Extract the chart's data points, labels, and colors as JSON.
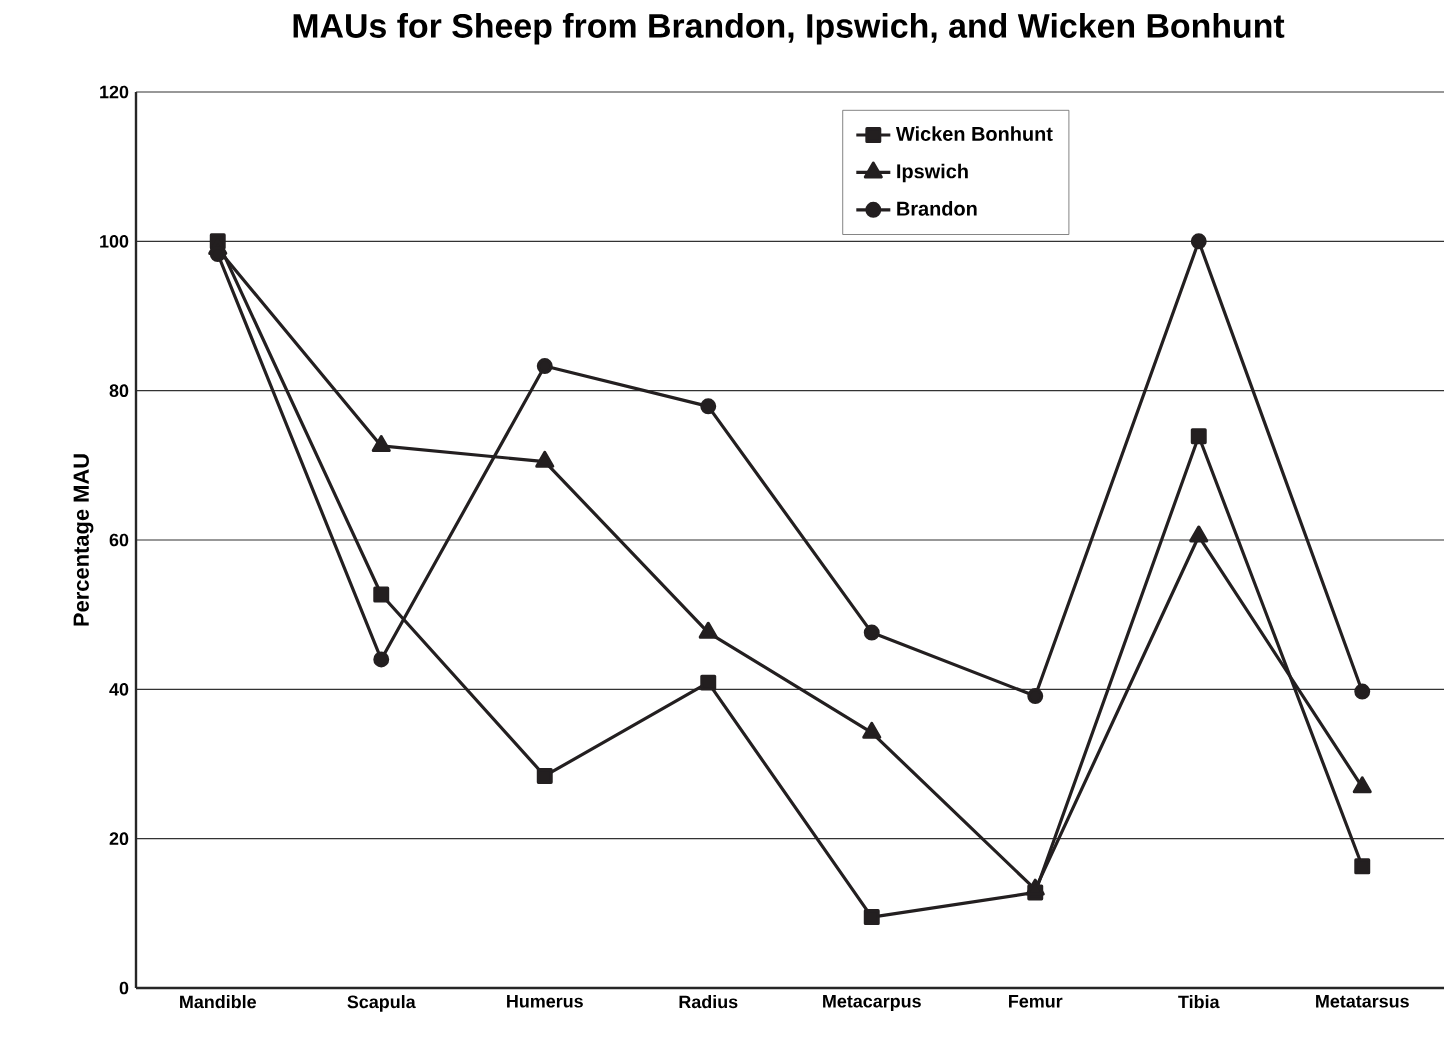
{
  "chart_data": {
    "type": "line",
    "title": "MAUs for Sheep from Brandon, Ipswich, and Wicken Bonhunt",
    "ylabel": "Percentage MAU",
    "categories": [
      "Mandible",
      "Scapula",
      "Humerus",
      "Radius",
      "Metacarpus",
      "Femur",
      "Tibia",
      "Metatarsus"
    ],
    "series": [
      {
        "name": "Wicken Bonhunt",
        "color": "#231f20",
        "marker": "square",
        "values": [
          100,
          52.7,
          28.4,
          40.9,
          9.5,
          12.8,
          73.9,
          16.3
        ]
      },
      {
        "name": "Ipswich",
        "color": "#231f20",
        "marker": "triangle",
        "values": [
          99,
          72.6,
          70.5,
          47.6,
          34.2,
          13.2,
          60.5,
          26.9
        ]
      },
      {
        "name": "Brandon",
        "color": "#231f20",
        "marker": "circle",
        "values": [
          98.3,
          44,
          83.3,
          77.9,
          47.6,
          39.1,
          100,
          39.7
        ]
      }
    ],
    "ylim": [
      0,
      120
    ],
    "yticks": [
      0,
      20,
      40,
      60,
      80,
      100,
      120
    ],
    "grid": "y",
    "legend": "top right",
    "line_style": "solid"
  }
}
